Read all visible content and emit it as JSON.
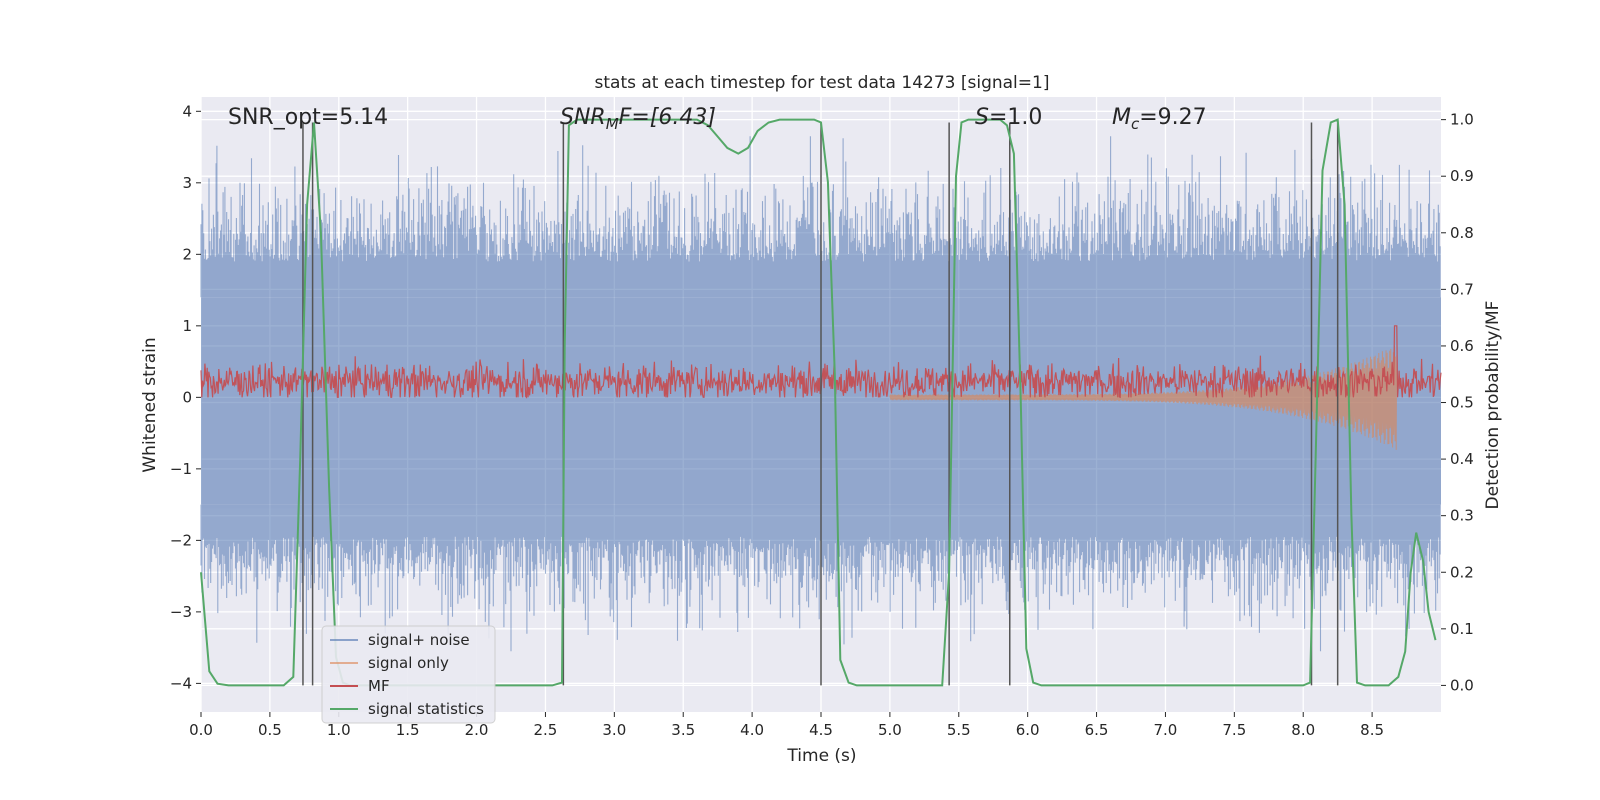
{
  "chart_data": {
    "type": "line",
    "title": "stats at each timestep for test data 14273 [signal=1]",
    "xlabel": "Time (s)",
    "ylabel": "Whitened strain",
    "y2label": "Detection probability/MF",
    "xlim": [
      0.0,
      9.0
    ],
    "ylim": [
      -4.4,
      4.2
    ],
    "y2lim": [
      -0.047,
      1.04
    ],
    "x_ticks": [
      0.0,
      0.5,
      1.0,
      1.5,
      2.0,
      2.5,
      3.0,
      3.5,
      4.0,
      4.5,
      5.0,
      5.5,
      6.0,
      6.5,
      7.0,
      7.5,
      8.0,
      8.5
    ],
    "x_tick_labels": [
      "0.0",
      "0.5",
      "1.0",
      "1.5",
      "2.0",
      "2.5",
      "3.0",
      "3.5",
      "4.0",
      "4.5",
      "5.0",
      "5.5",
      "6.0",
      "6.5",
      "7.0",
      "7.5",
      "8.0",
      "8.5"
    ],
    "y_ticks": [
      -4,
      -3,
      -2,
      -1,
      0,
      1,
      2,
      3,
      4
    ],
    "y_tick_labels": [
      "−4",
      "−3",
      "−2",
      "−1",
      "0",
      "1",
      "2",
      "3",
      "4"
    ],
    "y2_ticks": [
      0.0,
      0.1,
      0.2,
      0.3,
      0.4,
      0.5,
      0.6,
      0.7,
      0.8,
      0.9,
      1.0
    ],
    "y2_tick_labels": [
      "0.0",
      "0.1",
      "0.2",
      "0.3",
      "0.4",
      "0.5",
      "0.6",
      "0.7",
      "0.8",
      "0.9",
      "1.0"
    ],
    "annotations": {
      "snr_opt": "SNR_opt=5.14",
      "snr_mf": "SNR",
      "snr_mf_sub": "M",
      "snr_mf_rest": "F=[6.43]",
      "s": "S",
      "s_rest": "=1.0",
      "mc": "M",
      "mc_sub": "c",
      "mc_rest": "=9.27"
    },
    "legend": {
      "placement": "lower-left",
      "entries": [
        {
          "label": "signal+ noise",
          "color": "#4c72b0"
        },
        {
          "label": "signal only",
          "color": "#dd8452"
        },
        {
          "label": "MF",
          "color": "#c44e52"
        },
        {
          "label": "signal statistics",
          "color": "#55a868"
        }
      ]
    },
    "series": [
      {
        "name": "signal statistics",
        "axis": "right",
        "color": "#55a868",
        "points": [
          [
            0.0,
            0.2
          ],
          [
            0.06,
            0.025
          ],
          [
            0.12,
            0.003
          ],
          [
            0.2,
            0.0
          ],
          [
            0.6,
            0.0
          ],
          [
            0.67,
            0.015
          ],
          [
            0.72,
            0.4
          ],
          [
            0.77,
            0.85
          ],
          [
            0.82,
            0.995
          ],
          [
            0.87,
            0.8
          ],
          [
            0.93,
            0.35
          ],
          [
            0.98,
            0.05
          ],
          [
            1.03,
            0.005
          ],
          [
            1.08,
            0.0
          ],
          [
            2.55,
            0.0
          ],
          [
            2.62,
            0.005
          ],
          [
            2.64,
            0.6
          ],
          [
            2.67,
            0.99
          ],
          [
            2.73,
            1.0
          ],
          [
            3.6,
            1.0
          ],
          [
            3.68,
            0.99
          ],
          [
            3.75,
            0.97
          ],
          [
            3.82,
            0.95
          ],
          [
            3.9,
            0.94
          ],
          [
            3.97,
            0.95
          ],
          [
            4.04,
            0.98
          ],
          [
            4.12,
            0.995
          ],
          [
            4.2,
            1.0
          ],
          [
            4.45,
            1.0
          ],
          [
            4.5,
            0.995
          ],
          [
            4.55,
            0.89
          ],
          [
            4.6,
            0.55
          ],
          [
            4.64,
            0.045
          ],
          [
            4.7,
            0.005
          ],
          [
            4.76,
            0.0
          ],
          [
            5.38,
            0.0
          ],
          [
            5.43,
            0.2
          ],
          [
            5.48,
            0.9
          ],
          [
            5.52,
            0.995
          ],
          [
            5.57,
            1.0
          ],
          [
            5.8,
            1.0
          ],
          [
            5.85,
            0.99
          ],
          [
            5.9,
            0.94
          ],
          [
            5.95,
            0.5
          ],
          [
            5.99,
            0.065
          ],
          [
            6.04,
            0.005
          ],
          [
            6.1,
            0.0
          ],
          [
            8.0,
            0.0
          ],
          [
            8.05,
            0.005
          ],
          [
            8.1,
            0.5
          ],
          [
            8.14,
            0.91
          ],
          [
            8.2,
            0.995
          ],
          [
            8.25,
            1.0
          ],
          [
            8.3,
            0.85
          ],
          [
            8.35,
            0.3
          ],
          [
            8.39,
            0.005
          ],
          [
            8.45,
            0.0
          ],
          [
            8.62,
            0.0
          ],
          [
            8.69,
            0.015
          ],
          [
            8.74,
            0.06
          ],
          [
            8.78,
            0.2
          ],
          [
            8.82,
            0.27
          ],
          [
            8.87,
            0.22
          ],
          [
            8.91,
            0.13
          ],
          [
            8.96,
            0.08
          ]
        ]
      }
    ],
    "noise_series": {
      "name": "signal+ noise",
      "axis": "left",
      "color": "#4c72b0",
      "typical_upper": 1.4,
      "typical_lower": -1.5,
      "peak_upper": 3.65,
      "peak_lower": -3.55
    },
    "mf_series": {
      "name": "MF",
      "axis": "left",
      "color": "#c44e52",
      "mean": 0.22,
      "spread": 0.28,
      "end_spike_x": 8.67,
      "end_spike_y": 1.0
    },
    "signal_only_series": {
      "name": "signal only",
      "axis": "left",
      "color": "#dd8452",
      "start_x": 5.0,
      "end_x": 8.68,
      "max_amplitude": 0.7
    },
    "vertical_markers": [
      0.74,
      0.81,
      2.63,
      4.5,
      5.43,
      5.87,
      8.06,
      8.25
    ],
    "vertical_marker_range_y2": [
      0.0,
      0.995
    ]
  }
}
